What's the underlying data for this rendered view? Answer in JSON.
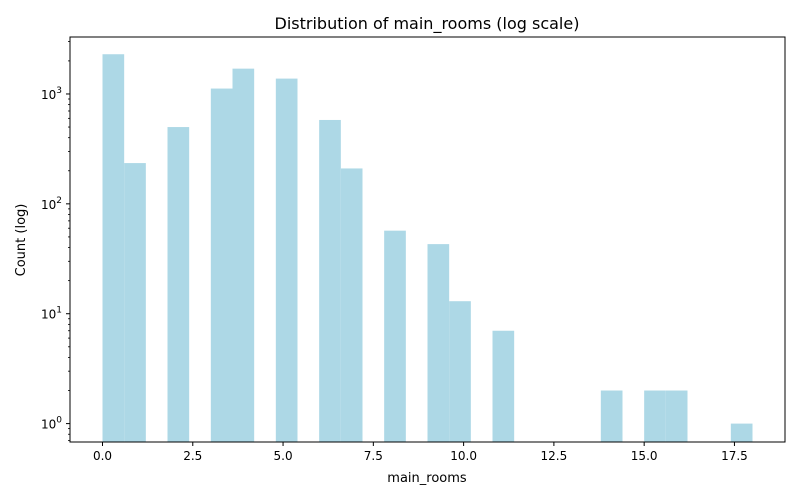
{
  "chart_data": {
    "type": "bar",
    "title": "Distribution of main_rooms (log scale)",
    "xlabel": "main_rooms",
    "ylabel": "Count (log)",
    "y_scale": "log",
    "xlim": [
      -0.9,
      18.9
    ],
    "ylim": [
      0.68,
      3300
    ],
    "x_ticks": [
      0.0,
      2.5,
      5.0,
      7.5,
      10.0,
      12.5,
      15.0,
      17.5
    ],
    "x_tick_labels": [
      "0.0",
      "2.5",
      "5.0",
      "7.5",
      "10.0",
      "12.5",
      "15.0",
      "17.5"
    ],
    "y_ticks": [
      1,
      10,
      100,
      1000
    ],
    "y_tick_labels": [
      {
        "base": "10",
        "exp": "0"
      },
      {
        "base": "10",
        "exp": "1"
      },
      {
        "base": "10",
        "exp": "2"
      },
      {
        "base": "10",
        "exp": "3"
      }
    ],
    "bar_color": "#add8e6",
    "bin_width": 0.6,
    "bins": [
      {
        "x0": 0.0,
        "x1": 0.6,
        "count": 2300
      },
      {
        "x0": 0.6,
        "x1": 1.2,
        "count": 235
      },
      {
        "x0": 1.8,
        "x1": 2.4,
        "count": 500
      },
      {
        "x0": 3.0,
        "x1": 3.6,
        "count": 1120
      },
      {
        "x0": 3.6,
        "x1": 4.2,
        "count": 1700
      },
      {
        "x0": 4.8,
        "x1": 5.4,
        "count": 1380
      },
      {
        "x0": 6.0,
        "x1": 6.6,
        "count": 580
      },
      {
        "x0": 6.6,
        "x1": 7.2,
        "count": 210
      },
      {
        "x0": 7.8,
        "x1": 8.4,
        "count": 57
      },
      {
        "x0": 9.0,
        "x1": 9.6,
        "count": 43
      },
      {
        "x0": 9.6,
        "x1": 10.2,
        "count": 13
      },
      {
        "x0": 10.8,
        "x1": 11.4,
        "count": 7
      },
      {
        "x0": 13.8,
        "x1": 14.4,
        "count": 2
      },
      {
        "x0": 15.0,
        "x1": 15.6,
        "count": 2
      },
      {
        "x0": 15.6,
        "x1": 16.2,
        "count": 2
      },
      {
        "x0": 17.4,
        "x1": 18.0,
        "count": 1
      }
    ]
  }
}
